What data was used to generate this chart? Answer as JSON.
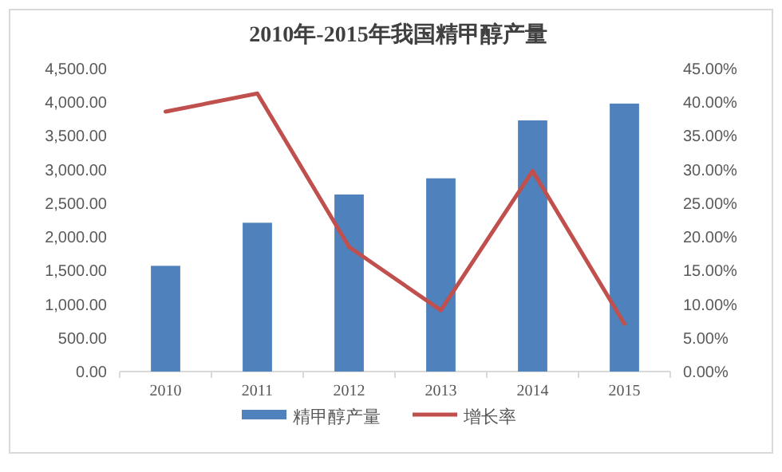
{
  "chart_data": {
    "type": "bar",
    "title": "2010年-2015年我国精甲醇产量",
    "categories": [
      "2010",
      "2011",
      "2012",
      "2013",
      "2014",
      "2015"
    ],
    "series": [
      {
        "name": "精甲醇产量",
        "color": "#4f81bd",
        "values": [
          1570,
          2210,
          2630,
          2870,
          3730,
          3980
        ]
      },
      {
        "name": "增长率",
        "color": "#c0504d",
        "type": "line",
        "axis": "y2",
        "marker": "none",
        "values": [
          38.6,
          41.3,
          18.5,
          9.1,
          29.8,
          7.1
        ]
      }
    ],
    "ylim": [
      0,
      4500
    ],
    "yticks": [
      {
        "value": 0,
        "label": "0.00"
      },
      {
        "value": 500,
        "label": "500.00"
      },
      {
        "value": 1000,
        "label": "1,000.00"
      },
      {
        "value": 1500,
        "label": "1,500.00"
      },
      {
        "value": 2000,
        "label": "2,000.00"
      },
      {
        "value": 2500,
        "label": "2,500.00"
      },
      {
        "value": 3000,
        "label": "3,000.00"
      },
      {
        "value": 3500,
        "label": "3,500.00"
      },
      {
        "value": 4000,
        "label": "4,000.00"
      },
      {
        "value": 4500,
        "label": "4,500.00"
      }
    ],
    "y2lim": [
      0,
      45
    ],
    "y2ticks": [
      {
        "value": 0,
        "label": "0.00%"
      },
      {
        "value": 5,
        "label": "5.00%"
      },
      {
        "value": 10,
        "label": "10.00%"
      },
      {
        "value": 15,
        "label": "15.00%"
      },
      {
        "value": 20,
        "label": "20.00%"
      },
      {
        "value": 25,
        "label": "25.00%"
      },
      {
        "value": 30,
        "label": "30.00%"
      },
      {
        "value": 35,
        "label": "35.00%"
      },
      {
        "value": 40,
        "label": "40.00%"
      },
      {
        "value": 45,
        "label": "45.00%"
      }
    ],
    "grid": false,
    "legend": "bottom"
  }
}
